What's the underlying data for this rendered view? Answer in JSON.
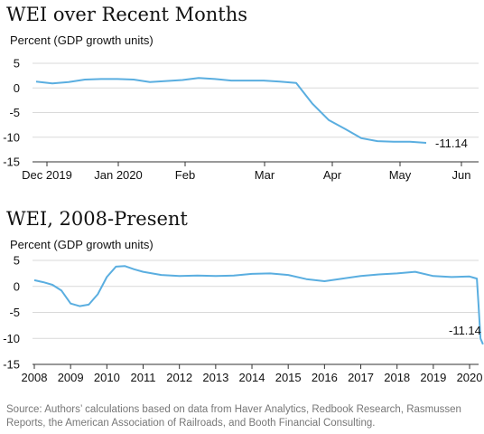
{
  "colors": {
    "line": "#5aaee0",
    "axis": "#333333",
    "grid": "#d9d9d9",
    "source": "#777777"
  },
  "source_text": "Source: Authors’ calculations based on data from Haver Analytics, Redbook Research, Rasmussen Reports, the American Association of Railroads, and Booth Financial Consulting.",
  "chart_data": [
    {
      "type": "line",
      "title": "WEI over Recent Months",
      "ylabel": "Percent (GDP growth units)",
      "ylim": [
        -15,
        5
      ],
      "yticks": [
        5,
        0,
        -5,
        -10,
        -15
      ],
      "grid": true,
      "xticks": [
        "Dec 2019",
        "Jan 2020",
        "Feb",
        "Mar",
        "Apr",
        "May",
        "Jun"
      ],
      "x": [
        "2019-11-30",
        "2019-12-07",
        "2019-12-14",
        "2019-12-21",
        "2019-12-28",
        "2020-01-04",
        "2020-01-11",
        "2020-01-18",
        "2020-01-25",
        "2020-02-01",
        "2020-02-08",
        "2020-02-15",
        "2020-02-22",
        "2020-02-29",
        "2020-03-07",
        "2020-03-14",
        "2020-03-21",
        "2020-03-28",
        "2020-04-04",
        "2020-04-11",
        "2020-04-18",
        "2020-04-25",
        "2020-05-02",
        "2020-05-09",
        "2020-05-16"
      ],
      "values": [
        1.3,
        0.9,
        1.2,
        1.7,
        1.8,
        1.8,
        1.7,
        1.2,
        1.4,
        1.6,
        2.0,
        1.8,
        1.5,
        1.5,
        1.5,
        1.3,
        1.0,
        -3.2,
        -6.5,
        -8.3,
        -10.2,
        -10.8,
        -10.9,
        -10.9,
        -11.14
      ],
      "end_label": "-11.14"
    },
    {
      "type": "line",
      "title": "WEI, 2008-Present",
      "ylabel": "Percent (GDP growth units)",
      "ylim": [
        -15,
        5
      ],
      "yticks": [
        5,
        0,
        -5,
        -10,
        -15
      ],
      "grid": true,
      "xticks": [
        "2008",
        "2009",
        "2010",
        "2011",
        "2012",
        "2013",
        "2014",
        "2015",
        "2016",
        "2017",
        "2018",
        "2019",
        "2020"
      ],
      "x": [
        2008.0,
        2008.25,
        2008.5,
        2008.75,
        2009.0,
        2009.25,
        2009.5,
        2009.75,
        2010.0,
        2010.25,
        2010.5,
        2010.75,
        2011.0,
        2011.5,
        2012.0,
        2012.5,
        2013.0,
        2013.5,
        2014.0,
        2014.5,
        2015.0,
        2015.5,
        2016.0,
        2016.5,
        2017.0,
        2017.5,
        2018.0,
        2018.5,
        2019.0,
        2019.5,
        2020.0,
        2020.1,
        2020.2,
        2020.25,
        2020.3,
        2020.37
      ],
      "values": [
        1.2,
        0.8,
        0.3,
        -0.8,
        -3.3,
        -3.8,
        -3.5,
        -1.5,
        1.8,
        3.8,
        3.9,
        3.3,
        2.8,
        2.2,
        2.0,
        2.1,
        2.0,
        2.1,
        2.4,
        2.5,
        2.2,
        1.4,
        1.0,
        1.5,
        2.0,
        2.3,
        2.5,
        2.8,
        2.0,
        1.8,
        1.9,
        1.7,
        1.5,
        -4.0,
        -10.0,
        -11.14
      ],
      "end_label": "-11.14"
    }
  ]
}
